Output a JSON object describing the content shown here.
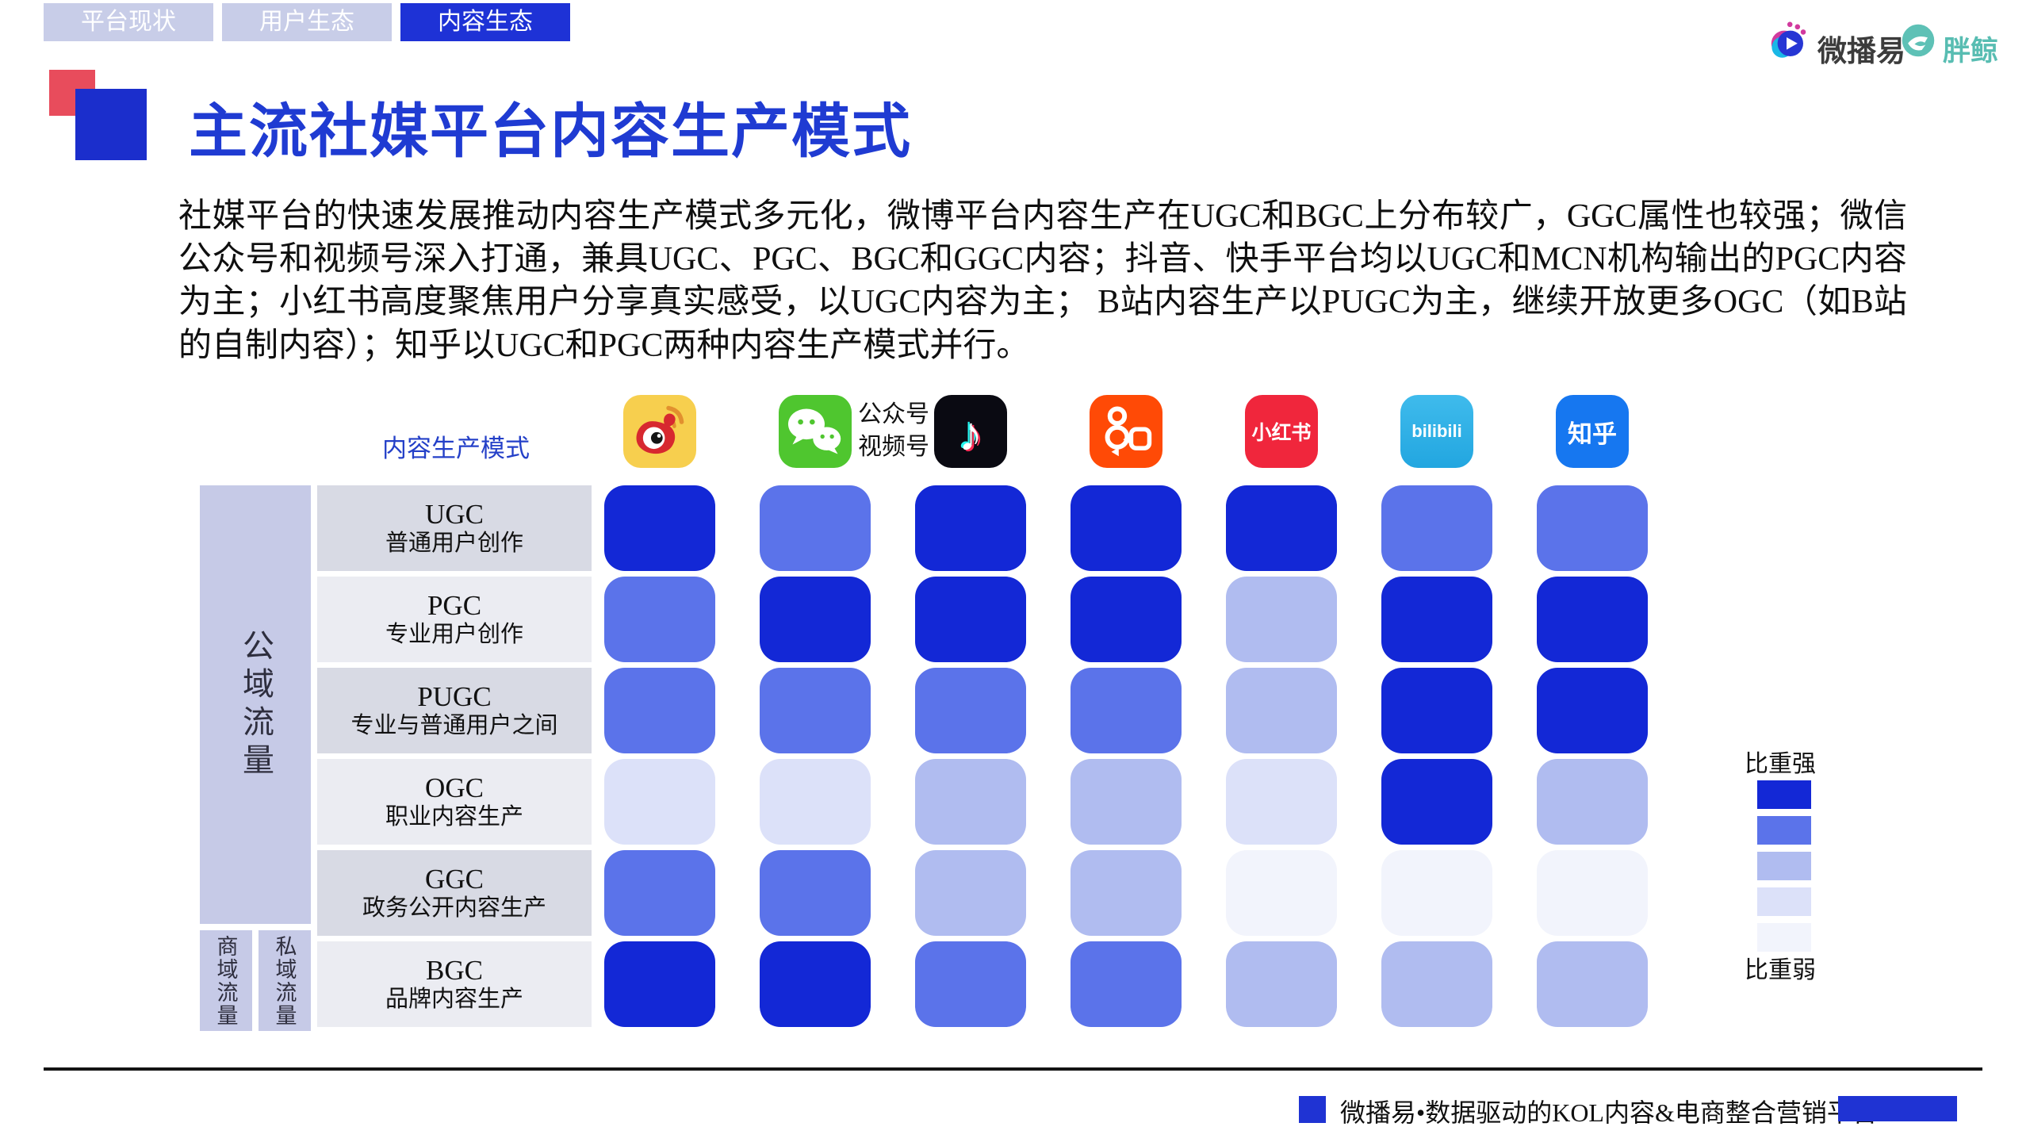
{
  "tabs": [
    {
      "label": "平台现状",
      "active": false
    },
    {
      "label": "用户生态",
      "active": false
    },
    {
      "label": "内容生态",
      "active": true
    }
  ],
  "brand": {
    "weiboyi": "微播易",
    "pangjing": "胖鲸"
  },
  "title": "主流社媒平台内容生产模式",
  "intro": "社媒平台的快速发展推动内容生产模式多元化，微博平台内容生产在UGC和BGC上分布较广，GGC属性也较强；微信公众号和视频号深入打通，兼具UGC、PGC、BGC和GGC内容；抖音、快手平台均以UGC和MCN机构输出的PGC内容为主；小红书高度聚焦用户分享真实感受，以UGC内容为主； B站内容生产以PUGC为主，继续开放更多OGC（如B站的自制内容）；知乎以UGC和PGC两种内容生产模式并行。",
  "matrix": {
    "axis_label": "内容生产模式",
    "row_groups": {
      "public": "公域流量",
      "commercial": "商域流量",
      "private": "私域流量"
    },
    "platforms": [
      {
        "id": "weibo",
        "name": "微博"
      },
      {
        "id": "wechat",
        "name": "微信",
        "caption_line1": "公众号",
        "caption_line2": "视频号"
      },
      {
        "id": "douyin",
        "name": "抖音"
      },
      {
        "id": "kuaishou",
        "name": "快手"
      },
      {
        "id": "xiaohongshu",
        "name": "小红书",
        "icon_text": "小红书"
      },
      {
        "id": "bilibili",
        "name": "bilibili",
        "icon_text": "bilibili"
      },
      {
        "id": "zhihu",
        "name": "知乎",
        "icon_text": "知乎"
      }
    ],
    "rows": [
      {
        "code": "UGC",
        "desc": "普通用户创作",
        "levels": [
          1,
          2,
          1,
          1,
          1,
          2,
          2
        ]
      },
      {
        "code": "PGC",
        "desc": "专业用户创作",
        "levels": [
          2,
          1,
          1,
          1,
          3,
          1,
          1
        ]
      },
      {
        "code": "PUGC",
        "desc": "专业与普通用户之间",
        "levels": [
          2,
          2,
          2,
          2,
          3,
          1,
          1
        ]
      },
      {
        "code": "OGC",
        "desc": "职业内容生产",
        "levels": [
          4,
          4,
          3,
          3,
          4,
          1,
          3
        ]
      },
      {
        "code": "GGC",
        "desc": "政务公开内容生产",
        "levels": [
          2,
          2,
          3,
          3,
          5,
          5,
          5
        ]
      },
      {
        "code": "BGC",
        "desc": "品牌内容生产",
        "levels": [
          1,
          1,
          2,
          2,
          3,
          3,
          3
        ]
      }
    ],
    "legend": {
      "strong_label": "比重强",
      "weak_label": "比重弱"
    },
    "level_colors": [
      "#1328d6",
      "#5b73ea",
      "#b0bcf0",
      "#dce1f9",
      "#f2f4fc"
    ]
  },
  "footer": {
    "tagline": "微播易•数据驱动的KOL内容&电商整合营销平台"
  },
  "chart_data": {
    "type": "heatmap",
    "title": "主流社媒平台内容生产模式",
    "x_categories": [
      "微博",
      "微信公众号/视频号",
      "抖音",
      "快手",
      "小红书",
      "bilibili",
      "知乎"
    ],
    "y_categories": [
      "UGC 普通用户创作",
      "PGC 专业用户创作",
      "PUGC 专业与普通用户之间",
      "OGC 职业内容生产",
      "GGC 政务公开内容生产",
      "BGC 品牌内容生产"
    ],
    "value_scale": "1 = 比重强(最深蓝) … 5 = 比重弱(最浅)",
    "values": [
      [
        1,
        2,
        1,
        1,
        1,
        2,
        2
      ],
      [
        2,
        1,
        1,
        1,
        3,
        1,
        1
      ],
      [
        2,
        2,
        2,
        2,
        3,
        1,
        1
      ],
      [
        4,
        4,
        3,
        3,
        4,
        1,
        3
      ],
      [
        2,
        2,
        3,
        3,
        5,
        5,
        5
      ],
      [
        1,
        1,
        2,
        2,
        3,
        3,
        3
      ]
    ],
    "row_group_labels": [
      "公域流量",
      "商域流量",
      "私域流量"
    ],
    "legend": [
      "比重强",
      "比重弱"
    ],
    "palette": [
      "#1328d6",
      "#5b73ea",
      "#b0bcf0",
      "#dce1f9",
      "#f2f4fc"
    ]
  }
}
